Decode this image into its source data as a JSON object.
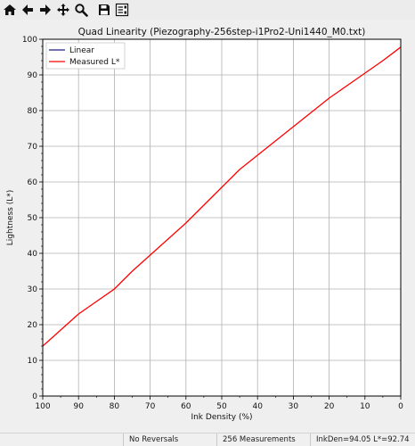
{
  "toolbar": {
    "buttons": [
      {
        "name": "home-icon"
      },
      {
        "name": "back-arrow-icon"
      },
      {
        "name": "forward-arrow-icon"
      },
      {
        "name": "pan-move-icon"
      },
      {
        "name": "zoom-magnifier-icon"
      },
      {
        "name": "save-floppy-icon"
      },
      {
        "name": "configure-subplots-icon"
      }
    ]
  },
  "chart_data": {
    "type": "line",
    "title": "Quad Linearity  (Piezography-256step-i1Pro2-Uni1440_M0.txt)",
    "xlabel": "Ink Density (%)",
    "ylabel": "Lightness (L*)",
    "xlim": [
      100,
      0
    ],
    "ylim": [
      0,
      100
    ],
    "x_ticks": [
      100,
      90,
      80,
      70,
      60,
      50,
      40,
      30,
      20,
      10,
      0
    ],
    "y_ticks": [
      0,
      10,
      20,
      30,
      40,
      50,
      60,
      70,
      80,
      90,
      100
    ],
    "x_inverted": true,
    "grid": true,
    "legend_position": "top-left",
    "series": [
      {
        "name": "Linear",
        "color": "#1f1f8f",
        "x": [],
        "y": []
      },
      {
        "name": "Measured L*",
        "color": "#ff0000",
        "x": [
          100,
          95,
          90,
          85,
          80,
          75,
          70,
          65,
          60,
          55,
          50,
          45,
          40,
          35,
          30,
          25,
          20,
          15,
          10,
          5,
          0
        ],
        "y": [
          14.0,
          18.5,
          23.0,
          26.5,
          30.0,
          35.0,
          39.5,
          44.0,
          48.5,
          53.5,
          58.5,
          63.5,
          67.5,
          71.5,
          75.5,
          79.5,
          83.5,
          87.0,
          90.5,
          94.0,
          97.8
        ]
      }
    ]
  },
  "status": {
    "reversals": "No Reversals",
    "measurements": "256 Measurements",
    "readout": "InkDen=94.05  L*=92.74"
  }
}
